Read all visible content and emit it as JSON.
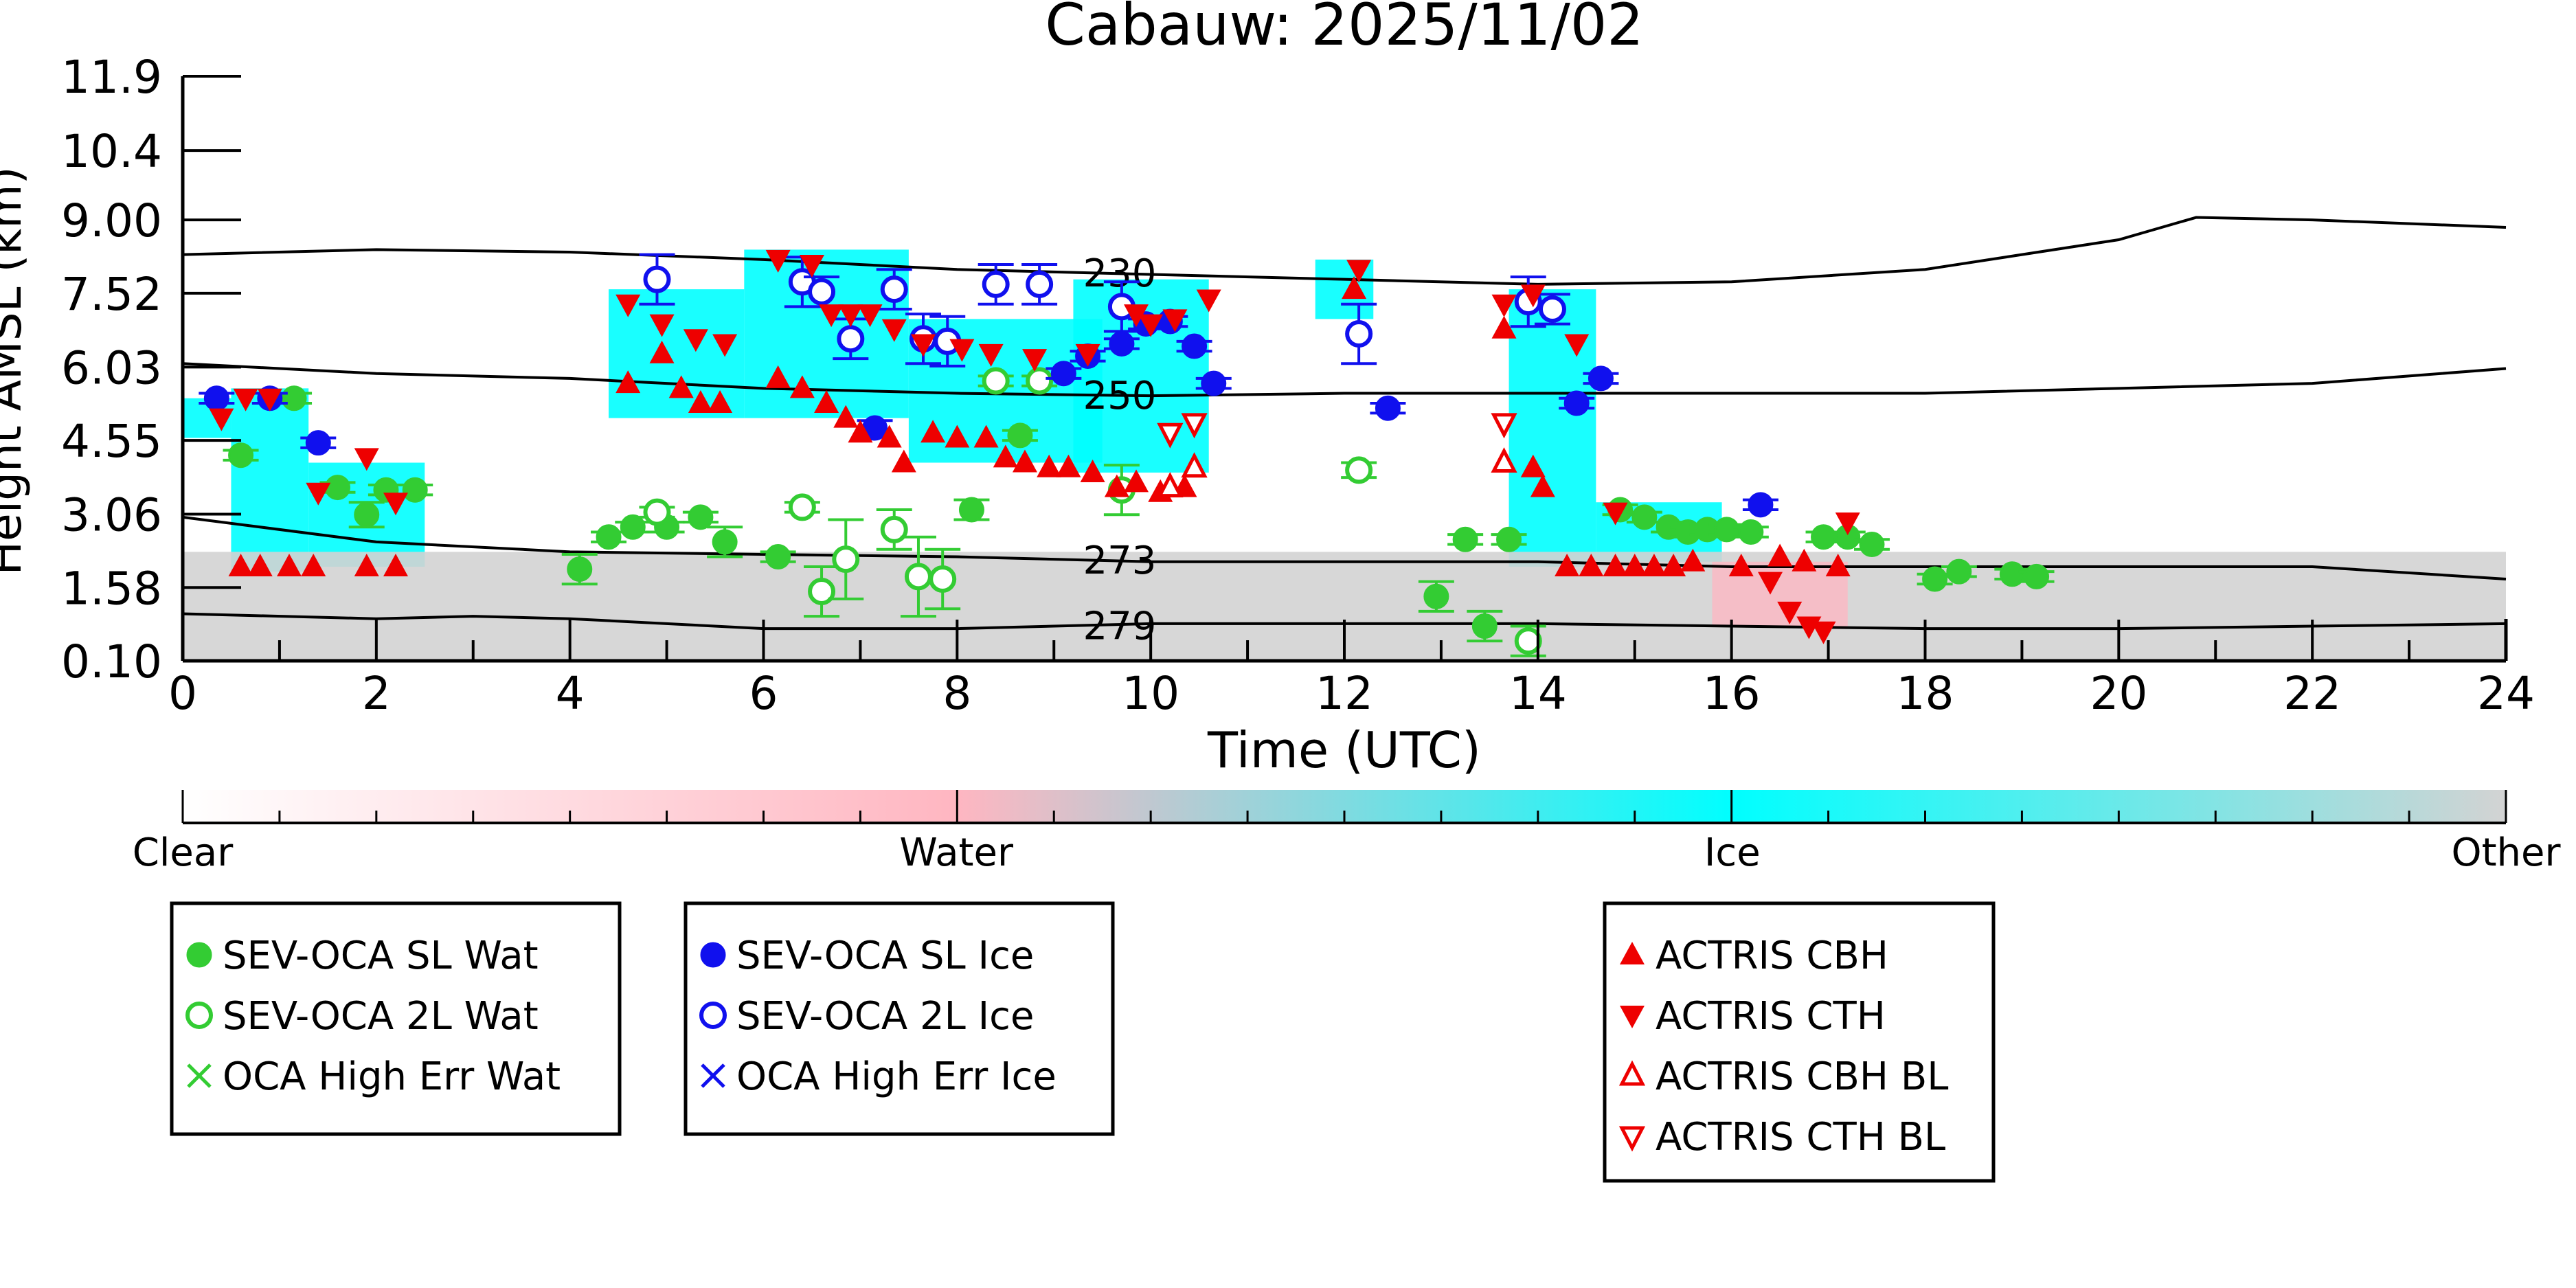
{
  "chart_data": {
    "type": "scatter",
    "title": "Cabauw: 2025/11/02",
    "xlabel": "Time (UTC)",
    "ylabel": "Height AMSL (km)",
    "xlim": [
      0,
      24
    ],
    "ylim": [
      0.1,
      11.9
    ],
    "x_ticks": [
      "0",
      "2",
      "4",
      "6",
      "8",
      "10",
      "12",
      "14",
      "16",
      "18",
      "20",
      "22",
      "24"
    ],
    "y_ticks": [
      "0.10",
      "1.58",
      "3.06",
      "4.55",
      "6.03",
      "7.52",
      "9.00",
      "10.4",
      "11.9"
    ],
    "grid": false,
    "colorbar": {
      "labels": [
        "Clear",
        "Water",
        "Ice",
        "Other"
      ],
      "colors": [
        "#ffffff",
        "#ffb6c1",
        "#00ffff",
        "#d3d3d3"
      ]
    },
    "contours": [
      {
        "label": "230",
        "label_x": 9.3,
        "x": [
          0,
          2,
          4,
          6,
          8,
          10,
          12,
          14,
          16,
          18,
          20,
          20.8,
          22,
          24
        ],
        "y": [
          8.3,
          8.4,
          8.35,
          8.2,
          8.0,
          7.9,
          7.8,
          7.7,
          7.75,
          8.0,
          8.6,
          9.05,
          9.0,
          8.85
        ]
      },
      {
        "label": "250",
        "label_x": 9.3,
        "x": [
          0,
          2,
          4,
          6,
          8,
          10,
          12,
          14,
          16,
          18,
          20,
          22,
          24
        ],
        "y": [
          6.1,
          5.9,
          5.8,
          5.6,
          5.5,
          5.45,
          5.5,
          5.5,
          5.5,
          5.5,
          5.6,
          5.7,
          6.0
        ]
      },
      {
        "label": "273",
        "label_x": 9.3,
        "x": [
          0,
          2,
          4,
          6,
          8,
          10,
          12,
          14,
          16,
          18,
          20,
          22,
          24
        ],
        "y": [
          3.0,
          2.5,
          2.3,
          2.25,
          2.2,
          2.1,
          2.1,
          2.1,
          2.0,
          2.0,
          2.0,
          2.0,
          1.75
        ]
      },
      {
        "label": "279",
        "label_x": 9.3,
        "x": [
          0,
          2,
          3,
          4,
          6,
          8,
          10,
          12,
          14,
          16,
          18,
          20,
          22,
          24
        ],
        "y": [
          1.05,
          0.95,
          1.0,
          0.95,
          0.75,
          0.75,
          0.85,
          0.85,
          0.85,
          0.8,
          0.75,
          0.75,
          0.8,
          0.85
        ]
      }
    ],
    "cloud_regions": [
      {
        "class": "Ice",
        "x0": 0.5,
        "x1": 1.3,
        "y0": 1.9,
        "y1": 5.6
      },
      {
        "class": "Ice",
        "x0": 0.0,
        "x1": 0.5,
        "y0": 4.6,
        "y1": 5.4
      },
      {
        "class": "Ice",
        "x0": 1.3,
        "x1": 2.5,
        "y0": 2.0,
        "y1": 4.1
      },
      {
        "class": "Ice",
        "x0": 4.4,
        "x1": 5.8,
        "y0": 5.0,
        "y1": 7.6
      },
      {
        "class": "Ice",
        "x0": 5.8,
        "x1": 7.5,
        "y0": 5.0,
        "y1": 8.4
      },
      {
        "class": "Ice",
        "x0": 7.5,
        "x1": 9.5,
        "y0": 4.1,
        "y1": 7.0
      },
      {
        "class": "Ice",
        "x0": 9.2,
        "x1": 10.6,
        "y0": 3.9,
        "y1": 7.8
      },
      {
        "class": "Ice",
        "x0": 11.7,
        "x1": 12.3,
        "y0": 7.0,
        "y1": 8.2
      },
      {
        "class": "Ice",
        "x0": 13.7,
        "x1": 14.6,
        "y0": 2.0,
        "y1": 7.6
      },
      {
        "class": "Ice",
        "x0": 14.6,
        "x1": 15.9,
        "y0": 2.1,
        "y1": 3.3
      },
      {
        "class": "Other",
        "x0": 0.0,
        "x1": 24.0,
        "y0": 0.1,
        "y1": 2.3
      },
      {
        "class": "Water",
        "x0": 15.8,
        "x1": 17.2,
        "y0": 0.8,
        "y1": 2.1
      }
    ],
    "series": [
      {
        "name": "SEV-OCA SL Wat",
        "color": "#33cc33",
        "marker": "filled-circle",
        "x": [
          0.6,
          1.15,
          1.6,
          1.9,
          2.1,
          2.4,
          4.1,
          4.4,
          4.65,
          5.0,
          5.35,
          5.6,
          6.15,
          8.15,
          8.65,
          12.95,
          13.25,
          13.45,
          13.7,
          14.85,
          15.1,
          15.35,
          15.55,
          15.75,
          15.95,
          16.2,
          16.95,
          17.2,
          17.45,
          18.1,
          18.35,
          18.9,
          19.15
        ],
        "y": [
          4.25,
          5.4,
          3.6,
          3.05,
          3.55,
          3.55,
          1.95,
          2.6,
          2.8,
          2.8,
          3.0,
          2.5,
          2.2,
          3.15,
          4.65,
          1.4,
          2.55,
          0.8,
          2.55,
          3.15,
          3.0,
          2.8,
          2.7,
          2.75,
          2.75,
          2.7,
          2.6,
          2.6,
          2.45,
          1.75,
          1.9,
          1.85,
          1.8
        ],
        "err": [
          0.1,
          0.1,
          0.1,
          0.25,
          0.1,
          0.1,
          0.3,
          0.1,
          0.1,
          0.1,
          0.1,
          0.3,
          0.1,
          0.2,
          0.1,
          0.3,
          0.1,
          0.3,
          0.1,
          0.1,
          0.1,
          0.1,
          0.1,
          0.1,
          0.1,
          0.1,
          0.1,
          0.1,
          0.1,
          0.1,
          0.1,
          0.1,
          0.1
        ]
      },
      {
        "name": "SEV-OCA 2L Wat",
        "color": "#33cc33",
        "marker": "open-circle",
        "x": [
          4.9,
          6.4,
          6.6,
          6.85,
          7.35,
          7.6,
          7.85,
          8.4,
          8.85,
          9.7,
          12.15,
          13.9
        ],
        "y": [
          3.1,
          3.2,
          1.5,
          2.15,
          2.75,
          1.8,
          1.75,
          5.75,
          5.75,
          3.55,
          3.95,
          0.5
        ],
        "err": [
          0.1,
          0.1,
          0.5,
          0.8,
          0.4,
          0.8,
          0.6,
          0.1,
          0.1,
          0.5,
          0.15,
          0.3
        ]
      },
      {
        "name": "OCA High Err Wat",
        "color": "#33cc33",
        "marker": "x",
        "x": [],
        "y": []
      },
      {
        "name": "SEV-OCA SL Ice",
        "color": "#1010ee",
        "marker": "filled-circle",
        "x": [
          0.35,
          0.9,
          1.4,
          7.15,
          9.1,
          9.35,
          9.7,
          9.95,
          10.2,
          10.45,
          10.65,
          12.45,
          14.4,
          14.65,
          16.3
        ],
        "y": [
          5.4,
          5.4,
          4.5,
          4.8,
          5.9,
          6.25,
          6.5,
          6.9,
          6.95,
          6.45,
          5.7,
          5.2,
          5.3,
          5.8,
          3.25
        ],
        "err": [
          0.1,
          0.1,
          0.1,
          0.15,
          0.1,
          0.1,
          0.1,
          0.1,
          0.1,
          0.1,
          0.1,
          0.1,
          0.1,
          0.1,
          0.1
        ]
      },
      {
        "name": "SEV-OCA 2L Ice",
        "color": "#1010ee",
        "marker": "open-circle",
        "x": [
          4.9,
          6.4,
          6.6,
          6.9,
          7.35,
          7.65,
          7.9,
          8.4,
          8.85,
          9.7,
          12.15,
          13.9,
          14.15
        ],
        "y": [
          7.8,
          7.75,
          7.55,
          6.6,
          7.6,
          6.6,
          6.55,
          7.7,
          7.7,
          7.25,
          6.7,
          7.35,
          7.2
        ],
        "err": [
          0.5,
          0.5,
          0.3,
          0.4,
          0.4,
          0.5,
          0.5,
          0.4,
          0.4,
          0.5,
          0.6,
          0.5,
          0.3
        ]
      },
      {
        "name": "OCA High Err Ice",
        "color": "#1010ee",
        "marker": "x",
        "x": [],
        "y": []
      },
      {
        "name": "ACTRIS CBH",
        "color": "#ee0000",
        "marker": "filled-triangle-up",
        "x": [
          0.6,
          0.8,
          1.1,
          1.35,
          1.9,
          2.2,
          4.6,
          4.95,
          5.15,
          5.35,
          5.55,
          6.15,
          6.4,
          6.65,
          6.85,
          7.0,
          7.3,
          7.45,
          7.75,
          8.0,
          8.3,
          8.5,
          8.7,
          8.95,
          9.15,
          9.4,
          9.65,
          9.85,
          10.1,
          10.35,
          12.1,
          13.65,
          13.95,
          14.05,
          14.3,
          14.55,
          14.8,
          15.0,
          15.2,
          15.4,
          15.6,
          16.1,
          16.5,
          16.75,
          17.1
        ],
        "y": [
          2.0,
          2.0,
          2.0,
          2.0,
          2.0,
          2.0,
          5.7,
          6.3,
          5.6,
          5.3,
          5.3,
          5.8,
          5.6,
          5.3,
          5.0,
          4.7,
          4.6,
          4.1,
          4.7,
          4.6,
          4.6,
          4.2,
          4.1,
          4.0,
          4.0,
          3.9,
          3.6,
          3.7,
          3.5,
          3.6,
          7.6,
          6.8,
          4.0,
          3.6,
          2.0,
          2.0,
          2.0,
          2.0,
          2.0,
          2.0,
          2.1,
          2.0,
          2.2,
          2.1,
          2.0
        ]
      },
      {
        "name": "ACTRIS CTH",
        "color": "#ee0000",
        "marker": "filled-triangle-down",
        "x": [
          0.4,
          0.65,
          0.9,
          1.4,
          1.9,
          2.2,
          4.6,
          4.95,
          5.3,
          5.6,
          6.15,
          6.5,
          6.7,
          6.9,
          7.1,
          7.35,
          7.65,
          8.05,
          8.35,
          8.8,
          9.35,
          9.85,
          10.0,
          10.25,
          10.6,
          12.15,
          13.65,
          13.95,
          14.4,
          14.8,
          16.4,
          16.6,
          16.8,
          16.95,
          17.2
        ],
        "y": [
          5.0,
          5.4,
          5.4,
          3.5,
          4.2,
          3.3,
          7.3,
          6.9,
          6.6,
          6.5,
          8.2,
          8.1,
          7.1,
          7.1,
          7.1,
          6.8,
          6.5,
          6.4,
          6.3,
          6.2,
          6.3,
          7.1,
          6.9,
          7.0,
          7.4,
          8.0,
          7.3,
          7.5,
          6.5,
          3.1,
          1.7,
          1.1,
          0.8,
          0.7,
          2.9
        ]
      },
      {
        "name": "ACTRIS CBH BL",
        "color": "#ee0000",
        "marker": "open-triangle-up",
        "x": [
          10.2,
          10.45,
          13.65
        ],
        "y": [
          3.6,
          4.0,
          4.1
        ]
      },
      {
        "name": "ACTRIS CTH BL",
        "color": "#ee0000",
        "marker": "open-triangle-down",
        "x": [
          10.2,
          10.45,
          13.65
        ],
        "y": [
          4.7,
          4.9,
          4.9
        ]
      }
    ]
  }
}
